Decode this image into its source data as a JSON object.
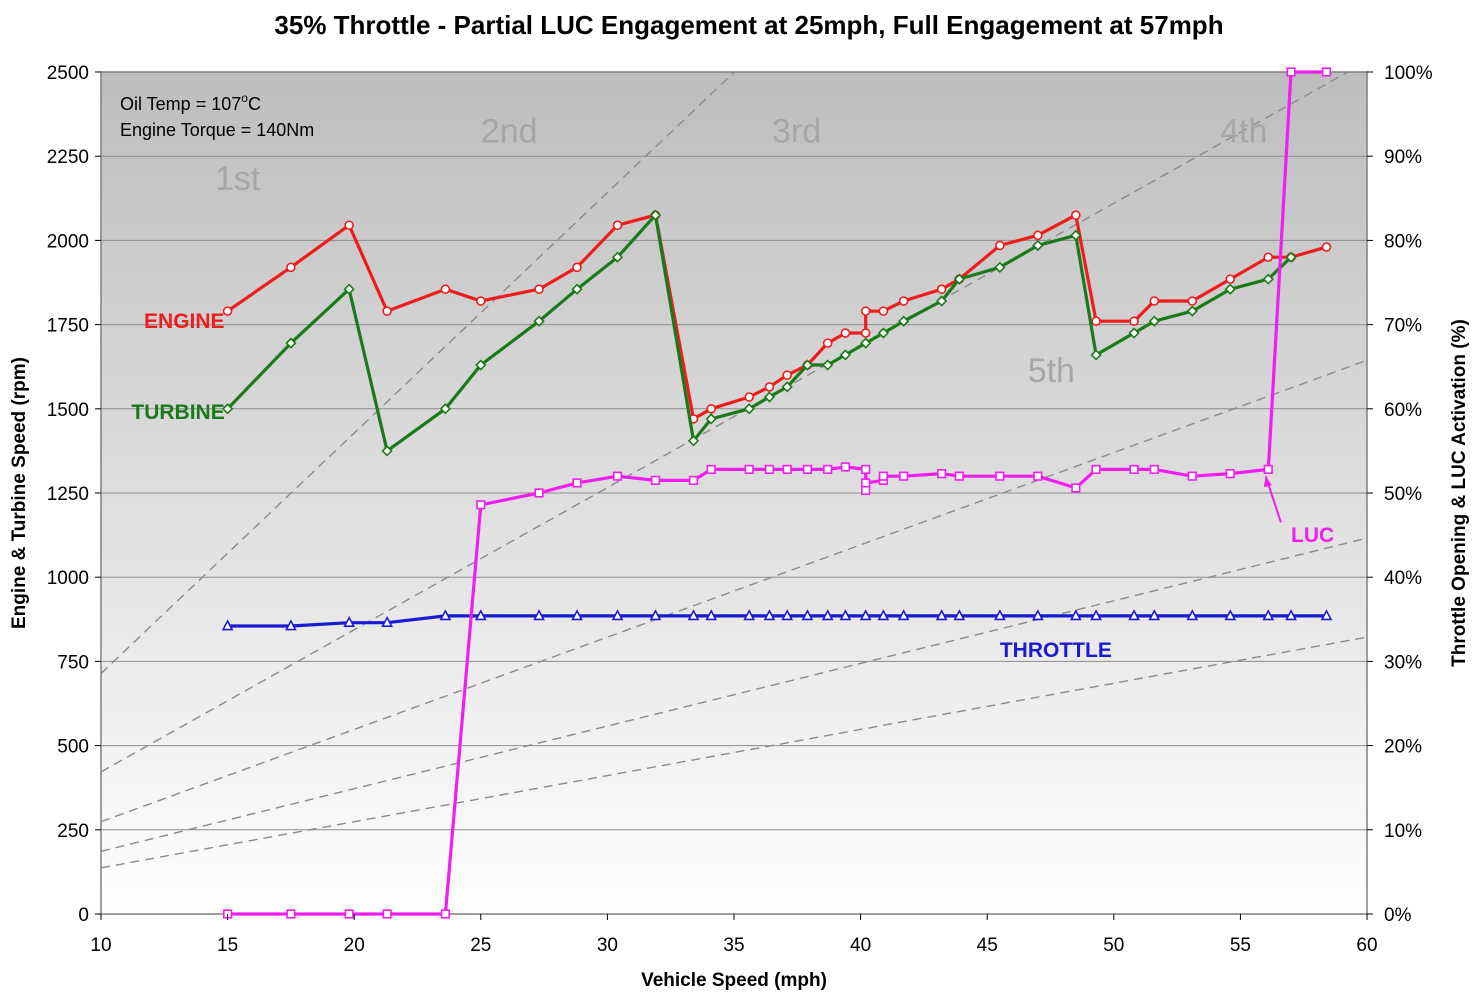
{
  "chart_data": {
    "type": "line",
    "title": "35% Throttle  -  Partial LUC Engagement at 25mph, Full Engagement at 57mph",
    "xlabel": "Vehicle Speed (mph)",
    "ylabel": "Engine & Turbine Speed (rpm)",
    "y2label": "Throttle Opening & LUC Activation (%)",
    "xlim": [
      10,
      60
    ],
    "ylim": [
      0,
      2500
    ],
    "y2lim": [
      0,
      100
    ],
    "x_ticks": [
      "10",
      "15",
      "20",
      "25",
      "30",
      "35",
      "40",
      "45",
      "50",
      "55",
      "60"
    ],
    "y_ticks": [
      "0",
      "250",
      "500",
      "750",
      "1000",
      "1250",
      "1500",
      "1750",
      "2000",
      "2250",
      "2500"
    ],
    "y2_ticks": [
      "0%",
      "10%",
      "20%",
      "30%",
      "40%",
      "50%",
      "60%",
      "70%",
      "80%",
      "90%",
      "100%"
    ],
    "grid": true,
    "annotations": {
      "oil_temp_prefix": "Oil Temp = 107",
      "oil_temp_sup": "o",
      "oil_temp_suffix": "C",
      "torque": "Engine Torque = 140Nm"
    },
    "gear_lines": [
      {
        "name": "1st",
        "slope": 71.4,
        "label_x": 14.5,
        "label_y": 2150
      },
      {
        "name": "2nd",
        "slope": 42.2,
        "label_x": 25.0,
        "label_y": 2290
      },
      {
        "name": "3rd",
        "slope": 27.4,
        "label_x": 36.5,
        "label_y": 2290
      },
      {
        "name": "4th",
        "slope": 18.6,
        "label_x": 54.2,
        "label_y": 2290
      },
      {
        "name": "5th",
        "slope": 13.7,
        "label_x": 46.6,
        "label_y": 1580
      }
    ],
    "series": [
      {
        "name": "ENGINE",
        "axis": "left",
        "color": "#ee1c1c",
        "marker": "circle",
        "label_x": 11.7,
        "label_y": 1740,
        "x": [
          15.0,
          17.5,
          19.8,
          21.3,
          23.6,
          25.0,
          27.3,
          28.8,
          30.4,
          31.9,
          33.4,
          34.1,
          35.6,
          36.4,
          37.1,
          37.9,
          38.7,
          39.4,
          40.2,
          40.2,
          40.9,
          41.7,
          43.2,
          43.9,
          45.5,
          47.0,
          48.5,
          49.3,
          50.8,
          51.6,
          53.1,
          54.6,
          56.1,
          57.0,
          58.4
        ],
        "values": [
          1790,
          1920,
          2045,
          1790,
          1855,
          1820,
          1855,
          1920,
          2045,
          2075,
          1470,
          1500,
          1535,
          1565,
          1600,
          1630,
          1695,
          1725,
          1725,
          1790,
          1790,
          1820,
          1855,
          1885,
          1985,
          2015,
          2075,
          1760,
          1760,
          1820,
          1820,
          1885,
          1950,
          1950,
          1980
        ]
      },
      {
        "name": "TURBINE",
        "axis": "left",
        "color": "#1a7a1a",
        "marker": "diamond",
        "label_x": 11.2,
        "label_y": 1470,
        "x": [
          15.0,
          17.5,
          19.8,
          21.3,
          23.6,
          25.0,
          27.3,
          28.8,
          30.4,
          31.9,
          33.4,
          34.1,
          35.6,
          36.4,
          37.1,
          37.9,
          38.7,
          39.4,
          40.2,
          40.9,
          41.7,
          43.2,
          43.9,
          45.5,
          47.0,
          48.5,
          49.3,
          50.8,
          51.6,
          53.1,
          54.6,
          56.1,
          57.0
        ],
        "values": [
          1500,
          1695,
          1855,
          1375,
          1500,
          1630,
          1760,
          1855,
          1950,
          2075,
          1405,
          1470,
          1500,
          1535,
          1565,
          1630,
          1630,
          1660,
          1695,
          1725,
          1760,
          1820,
          1885,
          1920,
          1985,
          2015,
          1660,
          1725,
          1760,
          1790,
          1855,
          1885,
          1950
        ]
      },
      {
        "name": "THROTTLE",
        "axis": "right",
        "color": "#1a1ad2",
        "marker": "triangle",
        "label_x": 45.5,
        "label_y": 30.5,
        "x": [
          15.0,
          17.5,
          19.8,
          21.3,
          23.6,
          25.0,
          27.3,
          28.8,
          30.4,
          31.9,
          33.4,
          34.1,
          35.6,
          36.4,
          37.1,
          37.9,
          38.7,
          39.4,
          40.2,
          40.9,
          41.7,
          43.2,
          43.9,
          45.5,
          47.0,
          48.5,
          49.3,
          50.8,
          51.6,
          53.1,
          54.6,
          56.1,
          57.0,
          58.4
        ],
        "values": [
          34.2,
          34.2,
          34.6,
          34.6,
          35.4,
          35.4,
          35.4,
          35.4,
          35.4,
          35.4,
          35.4,
          35.4,
          35.4,
          35.4,
          35.4,
          35.4,
          35.4,
          35.4,
          35.4,
          35.4,
          35.4,
          35.4,
          35.4,
          35.4,
          35.4,
          35.4,
          35.4,
          35.4,
          35.4,
          35.4,
          35.4,
          35.4,
          35.4,
          35.4
        ]
      },
      {
        "name": "LUC",
        "axis": "right",
        "color": "#f01ef0",
        "marker": "square",
        "label_x": 57.0,
        "label_y": 44.2,
        "x": [
          15.0,
          17.5,
          19.8,
          21.3,
          23.6,
          25.0,
          27.3,
          28.8,
          30.4,
          31.9,
          33.4,
          34.1,
          35.6,
          36.4,
          37.1,
          37.9,
          38.7,
          39.4,
          40.2,
          40.2,
          40.2,
          40.9,
          40.9,
          41.7,
          43.2,
          43.9,
          45.5,
          47.0,
          48.5,
          49.3,
          50.8,
          51.6,
          53.1,
          54.6,
          56.1,
          57.0,
          58.4
        ],
        "values": [
          0,
          0,
          0,
          0,
          0,
          48.6,
          50.0,
          51.2,
          52.0,
          51.5,
          51.5,
          52.8,
          52.8,
          52.8,
          52.8,
          52.8,
          52.8,
          53.1,
          52.8,
          50.3,
          51.2,
          51.5,
          52.0,
          52.0,
          52.3,
          52.0,
          52.0,
          52.0,
          50.6,
          52.8,
          52.8,
          52.8,
          52.0,
          52.3,
          52.8,
          100,
          100
        ]
      }
    ]
  }
}
